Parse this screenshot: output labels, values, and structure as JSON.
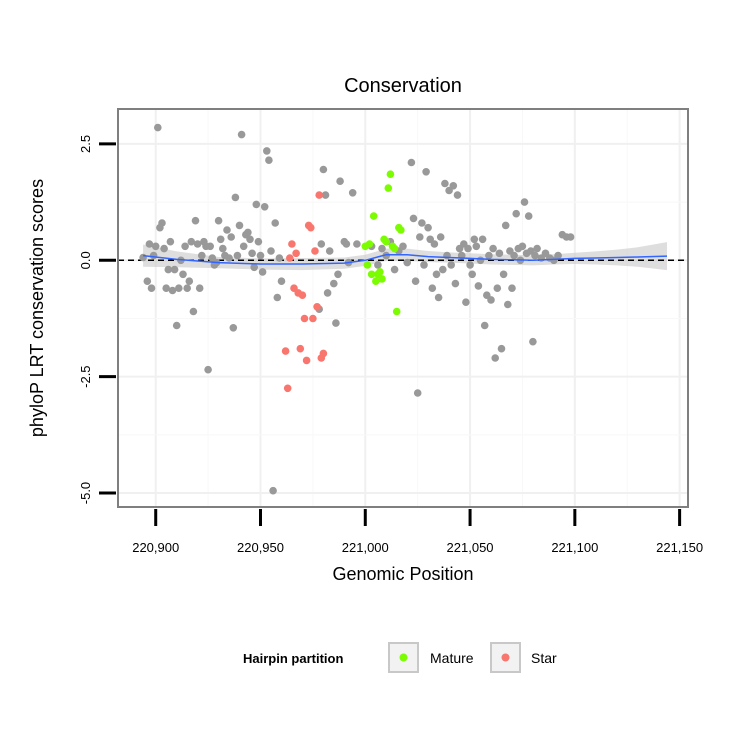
{
  "chart_data": {
    "type": "scatter",
    "title": "Conservation",
    "xlabel": "Genomic Position",
    "ylabel": "phyloP LRT conservation scores",
    "xlim": [
      220882,
      221154
    ],
    "ylim": [
      -5.3,
      3.25
    ],
    "x_ticks": [
      220900,
      220950,
      221000,
      221050,
      221100,
      221150
    ],
    "x_tick_labels": [
      "220,900",
      "220,950",
      "221,000",
      "221,050",
      "221,100",
      "221,150"
    ],
    "y_ticks": [
      -5,
      -2.5,
      0,
      2.5
    ],
    "y_tick_labels": [
      "-5.0",
      "-2.5",
      "0.0",
      "2.5"
    ],
    "reference_line_y": 0,
    "grid": true,
    "colors": {
      "other": "#999999",
      "mature": "#7CFC00",
      "star": "#F8766D",
      "smooth": "#3366FF",
      "ribbon": "#C8C8C8",
      "reference": "#000000",
      "panel_border": "#7F7F7F",
      "grid_major": "#F0F0F0"
    },
    "legend": {
      "title": "Hairpin partition",
      "position": "bottom",
      "entries": [
        {
          "label": "Mature",
          "color": "#7CFC00"
        },
        {
          "label": "Star",
          "color": "#F8766D"
        }
      ]
    },
    "series": [
      {
        "group": "other",
        "points": [
          [
            220894,
            0.06
          ],
          [
            220896,
            -0.45
          ],
          [
            220897,
            0.35
          ],
          [
            220898,
            -0.6
          ],
          [
            220899,
            0.1
          ],
          [
            220900,
            0.3
          ],
          [
            220901,
            2.85
          ],
          [
            220902,
            0.7
          ],
          [
            220903,
            0.8
          ],
          [
            220904,
            0.25
          ],
          [
            220905,
            -0.6
          ],
          [
            220906,
            -0.2
          ],
          [
            220907,
            0.4
          ],
          [
            220908,
            -0.65
          ],
          [
            220909,
            -0.2
          ],
          [
            220910,
            -1.4
          ],
          [
            220911,
            -0.6
          ],
          [
            220912,
            0.0
          ],
          [
            220913,
            -0.3
          ],
          [
            220914,
            0.3
          ],
          [
            220915,
            -0.6
          ],
          [
            220916,
            -0.45
          ],
          [
            220917,
            0.4
          ],
          [
            220918,
            -1.1
          ],
          [
            220919,
            0.85
          ],
          [
            220920,
            0.35
          ],
          [
            220921,
            -0.6
          ],
          [
            220922,
            0.1
          ],
          [
            220923,
            0.4
          ],
          [
            220924,
            0.3
          ],
          [
            220925,
            -2.35
          ],
          [
            220926,
            0.3
          ],
          [
            220927,
            0.05
          ],
          [
            220928,
            -0.1
          ],
          [
            220929,
            -0.05
          ],
          [
            220930,
            0.85
          ],
          [
            220931,
            0.45
          ],
          [
            220932,
            0.25
          ],
          [
            220933,
            0.1
          ],
          [
            220934,
            0.65
          ],
          [
            220935,
            0.05
          ],
          [
            220936,
            0.5
          ],
          [
            220937,
            -1.45
          ],
          [
            220938,
            1.35
          ],
          [
            220939,
            0.1
          ],
          [
            220940,
            0.75
          ],
          [
            220941,
            2.7
          ],
          [
            220942,
            0.3
          ],
          [
            220943,
            0.55
          ],
          [
            220944,
            0.6
          ],
          [
            220945,
            0.45
          ],
          [
            220946,
            0.15
          ],
          [
            220947,
            -0.15
          ],
          [
            220948,
            1.2
          ],
          [
            220949,
            0.4
          ],
          [
            220950,
            0.1
          ],
          [
            220951,
            -0.25
          ],
          [
            220952,
            1.15
          ],
          [
            220953,
            2.35
          ],
          [
            220954,
            2.15
          ],
          [
            220955,
            0.2
          ],
          [
            220956,
            -4.95
          ],
          [
            220957,
            0.8
          ],
          [
            220958,
            -0.8
          ],
          [
            220959,
            0.05
          ],
          [
            220960,
            -0.45
          ],
          [
            220978,
            -1.05
          ],
          [
            220979,
            0.35
          ],
          [
            220980,
            1.95
          ],
          [
            220981,
            1.4
          ],
          [
            220982,
            -0.7
          ],
          [
            220983,
            0.2
          ],
          [
            220985,
            -0.5
          ],
          [
            220986,
            -1.35
          ],
          [
            220987,
            -0.3
          ],
          [
            220988,
            1.7
          ],
          [
            220990,
            0.4
          ],
          [
            220991,
            0.35
          ],
          [
            220992,
            -0.05
          ],
          [
            220994,
            1.45
          ],
          [
            220996,
            0.35
          ],
          [
            221003,
            0.3
          ],
          [
            221006,
            -0.1
          ],
          [
            221008,
            0.25
          ],
          [
            221010,
            0.1
          ],
          [
            221012,
            0.4
          ],
          [
            221014,
            -0.2
          ],
          [
            221016,
            0.2
          ],
          [
            221018,
            0.3
          ],
          [
            221020,
            -0.05
          ],
          [
            221022,
            2.1
          ],
          [
            221023,
            0.9
          ],
          [
            221024,
            -0.45
          ],
          [
            221025,
            -2.85
          ],
          [
            221026,
            0.5
          ],
          [
            221027,
            0.8
          ],
          [
            221028,
            -0.1
          ],
          [
            221029,
            1.9
          ],
          [
            221030,
            0.7
          ],
          [
            221031,
            0.45
          ],
          [
            221032,
            -0.6
          ],
          [
            221033,
            0.35
          ],
          [
            221034,
            -0.3
          ],
          [
            221035,
            -0.8
          ],
          [
            221036,
            0.5
          ],
          [
            221037,
            -0.2
          ],
          [
            221038,
            1.65
          ],
          [
            221039,
            0.1
          ],
          [
            221040,
            1.5
          ],
          [
            221041,
            -0.1
          ],
          [
            221042,
            1.6
          ],
          [
            221043,
            -0.5
          ],
          [
            221044,
            1.4
          ],
          [
            221045,
            0.25
          ],
          [
            221046,
            0.1
          ],
          [
            221047,
            0.35
          ],
          [
            221048,
            -0.9
          ],
          [
            221049,
            0.25
          ],
          [
            221050,
            -0.1
          ],
          [
            221051,
            -0.3
          ],
          [
            221052,
            0.45
          ],
          [
            221053,
            0.3
          ],
          [
            221054,
            -0.55
          ],
          [
            221055,
            0.0
          ],
          [
            221056,
            0.45
          ],
          [
            221057,
            -1.4
          ],
          [
            221058,
            -0.75
          ],
          [
            221059,
            0.1
          ],
          [
            221060,
            -0.85
          ],
          [
            221061,
            0.25
          ],
          [
            221062,
            -2.1
          ],
          [
            221063,
            -0.6
          ],
          [
            221064,
            0.15
          ],
          [
            221065,
            -1.9
          ],
          [
            221066,
            -0.3
          ],
          [
            221067,
            0.75
          ],
          [
            221068,
            -0.95
          ],
          [
            221069,
            0.2
          ],
          [
            221070,
            -0.6
          ],
          [
            221071,
            0.1
          ],
          [
            221072,
            1.0
          ],
          [
            221073,
            0.25
          ],
          [
            221074,
            0.0
          ],
          [
            221075,
            0.3
          ],
          [
            221076,
            1.25
          ],
          [
            221077,
            0.15
          ],
          [
            221078,
            0.95
          ],
          [
            221079,
            0.2
          ],
          [
            221080,
            -1.75
          ],
          [
            221081,
            0.1
          ],
          [
            221082,
            0.25
          ],
          [
            221084,
            0.05
          ],
          [
            221086,
            0.15
          ],
          [
            221088,
            0.05
          ],
          [
            221090,
            0.0
          ],
          [
            221092,
            0.1
          ],
          [
            221094,
            0.55
          ],
          [
            221096,
            0.5
          ],
          [
            221098,
            0.5
          ]
        ]
      },
      {
        "group": "mature",
        "points": [
          [
            221000,
            0.3
          ],
          [
            221001,
            -0.1
          ],
          [
            221002,
            0.35
          ],
          [
            221003,
            -0.3
          ],
          [
            221004,
            0.95
          ],
          [
            221005,
            -0.45
          ],
          [
            221006,
            -0.3
          ],
          [
            221007,
            -0.25
          ],
          [
            221008,
            -0.4
          ],
          [
            221009,
            0.45
          ],
          [
            221010,
            0.4
          ],
          [
            221011,
            1.55
          ],
          [
            221012,
            1.85
          ],
          [
            221013,
            0.3
          ],
          [
            221014,
            0.25
          ],
          [
            221015,
            -1.1
          ],
          [
            221016,
            0.7
          ],
          [
            221017,
            0.65
          ]
        ]
      },
      {
        "group": "star",
        "points": [
          [
            220962,
            -1.95
          ],
          [
            220963,
            -2.75
          ],
          [
            220964,
            0.05
          ],
          [
            220965,
            0.35
          ],
          [
            220966,
            -0.6
          ],
          [
            220967,
            0.15
          ],
          [
            220968,
            -0.7
          ],
          [
            220969,
            -1.9
          ],
          [
            220970,
            -0.75
          ],
          [
            220971,
            -1.25
          ],
          [
            220972,
            -2.15
          ],
          [
            220973,
            0.75
          ],
          [
            220974,
            0.7
          ],
          [
            220975,
            -1.25
          ],
          [
            220976,
            0.2
          ],
          [
            220977,
            -1.0
          ],
          [
            220978,
            1.4
          ],
          [
            220979,
            -2.1
          ],
          [
            220980,
            -2.0
          ]
        ]
      }
    ],
    "smooth": {
      "x": [
        220894,
        220910,
        220930,
        220950,
        220970,
        220990,
        221000,
        221010,
        221020,
        221030,
        221040,
        221050,
        221060,
        221070,
        221080,
        221090,
        221100,
        221110,
        221120,
        221130,
        221144
      ],
      "y": [
        0.1,
        0.02,
        -0.05,
        -0.08,
        -0.08,
        -0.06,
        0.0,
        0.12,
        0.12,
        0.08,
        0.06,
        0.04,
        0.02,
        0.01,
        0.0,
        0.02,
        0.04,
        0.05,
        0.06,
        0.07,
        0.09
      ],
      "band_halfwidth": [
        0.24,
        0.17,
        0.12,
        0.12,
        0.13,
        0.12,
        0.12,
        0.13,
        0.13,
        0.12,
        0.11,
        0.11,
        0.11,
        0.11,
        0.11,
        0.11,
        0.12,
        0.14,
        0.17,
        0.21,
        0.3
      ]
    }
  }
}
